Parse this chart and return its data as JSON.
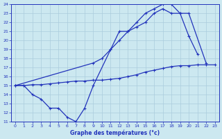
{
  "xlabel": "Graphe des températures (°c)",
  "bg_color": "#cce8f0",
  "line_color": "#2233bb",
  "grid_color": "#aaccdd",
  "ylim": [
    11,
    24
  ],
  "xlim": [
    -0.5,
    23.5
  ],
  "yticks": [
    11,
    12,
    13,
    14,
    15,
    16,
    17,
    18,
    19,
    20,
    21,
    22,
    23,
    24
  ],
  "xticks": [
    0,
    1,
    2,
    3,
    4,
    5,
    6,
    7,
    8,
    9,
    10,
    11,
    12,
    13,
    14,
    15,
    16,
    17,
    18,
    19,
    20,
    21,
    22,
    23
  ],
  "line1_x": [
    0,
    1,
    2,
    3,
    4,
    5,
    6,
    7,
    8,
    9,
    11,
    12,
    13,
    14,
    15,
    16,
    17,
    18,
    19,
    20,
    21
  ],
  "line1_y": [
    15.0,
    15.0,
    14.0,
    13.5,
    12.5,
    12.5,
    11.5,
    11.0,
    12.5,
    15.0,
    19.0,
    21.0,
    21.0,
    22.0,
    23.0,
    23.5,
    24.0,
    24.0,
    23.0,
    20.5,
    18.5
  ],
  "line2_x": [
    0,
    9,
    10,
    11,
    12,
    13,
    14,
    15,
    16,
    17,
    18,
    19,
    20,
    22
  ],
  "line2_y": [
    15.0,
    17.5,
    18.0,
    19.0,
    20.0,
    21.0,
    21.5,
    22.0,
    23.0,
    23.5,
    23.0,
    23.0,
    23.0,
    17.5
  ],
  "line3_x": [
    0,
    1,
    2,
    3,
    4,
    5,
    6,
    7,
    8,
    9,
    10,
    11,
    12,
    13,
    14,
    15,
    16,
    17,
    18,
    19,
    20,
    21,
    22,
    23
  ],
  "line3_y": [
    15.0,
    15.0,
    15.1,
    15.1,
    15.2,
    15.3,
    15.4,
    15.5,
    15.5,
    15.6,
    15.6,
    15.7,
    15.8,
    16.0,
    16.2,
    16.5,
    16.7,
    16.9,
    17.1,
    17.2,
    17.2,
    17.3,
    17.3,
    17.3
  ]
}
